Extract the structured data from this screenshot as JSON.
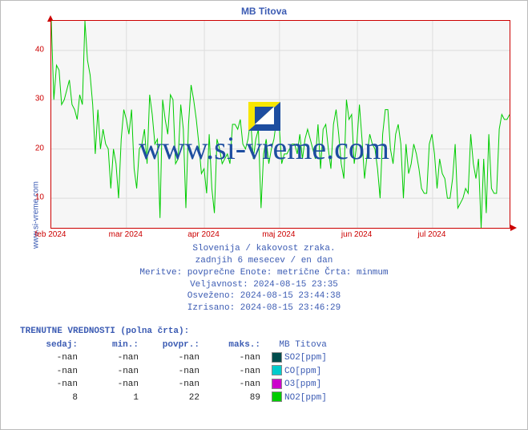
{
  "site_label": "www.si-vreme.com",
  "watermark_text": "www.si-vreme.com",
  "chart": {
    "title": "MB Titova",
    "type": "line",
    "plot_background": "#f6f6f6",
    "grid_color": "#dddddd",
    "axis_color": "#cc0000",
    "line_color": "#00cc00",
    "line_width": 1,
    "ylim": [
      4,
      46
    ],
    "yticks": [
      10,
      20,
      30,
      40
    ],
    "xticks": [
      "feb 2024",
      "mar 2024",
      "apr 2024",
      "maj 2024",
      "jun 2024",
      "jul 2024"
    ],
    "xtick_positions_pct": [
      0,
      16.4,
      33.4,
      49.8,
      66.8,
      83.2
    ],
    "series": [
      46,
      30,
      37,
      36,
      29,
      30,
      32,
      34,
      29,
      28,
      26,
      31,
      29,
      46,
      38,
      35,
      29,
      19,
      28,
      20,
      24,
      21,
      20,
      12,
      20,
      17,
      10,
      22,
      28,
      26,
      23,
      28,
      16,
      12,
      20,
      21,
      24,
      17,
      31,
      27,
      21,
      22,
      6,
      30,
      26,
      23,
      31,
      30,
      17,
      18,
      29,
      24,
      8,
      25,
      33,
      30,
      26,
      21,
      15,
      16,
      11,
      23,
      12,
      7,
      22,
      20,
      17,
      18,
      19,
      17,
      25,
      25,
      24,
      26,
      21,
      20,
      22,
      26,
      18,
      22,
      24,
      8,
      19,
      22,
      17,
      20,
      22,
      26,
      25,
      17,
      19,
      19,
      20,
      21,
      21,
      19,
      23,
      18,
      22,
      24,
      22,
      20,
      18,
      25,
      16,
      24,
      25,
      20,
      16,
      25,
      28,
      23,
      17,
      14,
      30,
      26,
      27,
      17,
      21,
      29,
      22,
      14,
      19,
      23,
      21,
      20,
      16,
      10,
      23,
      28,
      28,
      20,
      17,
      23,
      25,
      21,
      10,
      21,
      15,
      17,
      21,
      19,
      16,
      12,
      11,
      11,
      21,
      23,
      19,
      12,
      18,
      15,
      14,
      10,
      10,
      14,
      21,
      8,
      9,
      10,
      12,
      11,
      23,
      17,
      14,
      18,
      4,
      18,
      7,
      23,
      12,
      11,
      11,
      24,
      27,
      26,
      26,
      27
    ]
  },
  "info": {
    "line1": "Slovenija / kakovost zraka.",
    "line2": "zadnjih 6 mesecev / en dan",
    "line3": "Meritve: povprečne  Enote: metrične  Črta: minmum",
    "line4": "Veljavnost: 2024-08-15 23:35",
    "line5": "Osveženo: 2024-08-15 23:44:38",
    "line6": "Izrisano: 2024-08-15 23:46:29"
  },
  "values": {
    "header": "TRENUTNE VREDNOSTI (polna črta):",
    "columns": [
      "sedaj:",
      "min.:",
      "povpr.:",
      "maks.:"
    ],
    "station_label": "MB Titova",
    "rows": [
      {
        "sedaj": "-nan",
        "min": "-nan",
        "povpr": "-nan",
        "maks": "-nan",
        "swatch": "#004d4d",
        "param": "SO2[ppm]"
      },
      {
        "sedaj": "-nan",
        "min": "-nan",
        "povpr": "-nan",
        "maks": "-nan",
        "swatch": "#00cccc",
        "param": "CO[ppm]"
      },
      {
        "sedaj": "-nan",
        "min": "-nan",
        "povpr": "-nan",
        "maks": "-nan",
        "swatch": "#cc00cc",
        "param": "O3[ppm]"
      },
      {
        "sedaj": "8",
        "min": "1",
        "povpr": "22",
        "maks": "89",
        "swatch": "#00cc00",
        "param": "NO2[ppm]"
      }
    ]
  },
  "watermark_colors": {
    "top_left": "#f7e600",
    "top_right": "#1e4ea0",
    "bot_left": "#1e4ea0",
    "bot_right": "#ffffff"
  }
}
